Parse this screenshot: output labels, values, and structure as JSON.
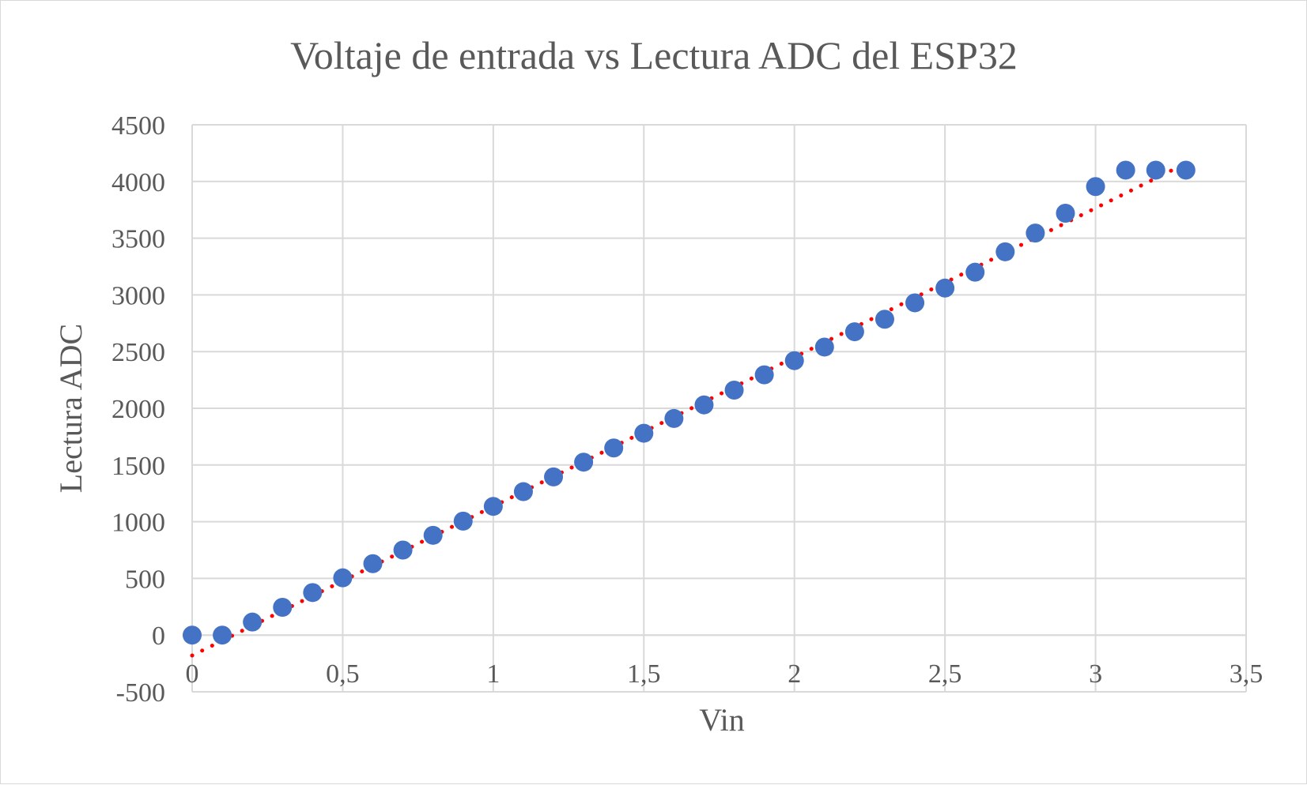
{
  "chart_data": {
    "type": "scatter",
    "title": "Voltaje de entrada vs Lectura ADC del ESP32",
    "xlabel": "Vin",
    "ylabel": "Lectura ADC",
    "xlim": [
      0,
      3.5
    ],
    "ylim": [
      -500,
      4500
    ],
    "x_ticks": [
      0,
      0.5,
      1,
      1.5,
      2,
      2.5,
      3,
      3.5
    ],
    "x_tick_labels": [
      "0",
      "0,5",
      "1",
      "1,5",
      "2",
      "2,5",
      "3",
      "3,5"
    ],
    "y_ticks": [
      -500,
      0,
      500,
      1000,
      1500,
      2000,
      2500,
      3000,
      3500,
      4000,
      4500
    ],
    "y_tick_labels": [
      "-500",
      "0",
      "500",
      "1000",
      "1500",
      "2000",
      "2500",
      "3000",
      "3500",
      "4000",
      "4500"
    ],
    "grid": true,
    "legend": "none",
    "series": [
      {
        "marker_color": "#4472c4",
        "x": [
          0,
          0.1,
          0.2,
          0.3,
          0.4,
          0.5,
          0.6,
          0.7,
          0.8,
          0.9,
          1.0,
          1.1,
          1.2,
          1.3,
          1.4,
          1.5,
          1.6,
          1.7,
          1.8,
          1.9,
          2.0,
          2.1,
          2.2,
          2.3,
          2.4,
          2.5,
          2.6,
          2.7,
          2.8,
          2.9,
          3.0,
          3.1,
          3.2,
          3.3
        ],
        "y": [
          0,
          0,
          115,
          245,
          375,
          505,
          630,
          750,
          880,
          1005,
          1135,
          1265,
          1395,
          1525,
          1650,
          1780,
          1910,
          2030,
          2160,
          2295,
          2420,
          2540,
          2675,
          2785,
          2930,
          3060,
          3200,
          3380,
          3545,
          3720,
          3955,
          4100,
          4100,
          4100
        ]
      }
    ],
    "trendline": {
      "style": "dotted",
      "color": "#ff0000",
      "x": [
        0,
        3.3
      ],
      "y": [
        -180,
        4160
      ]
    }
  }
}
